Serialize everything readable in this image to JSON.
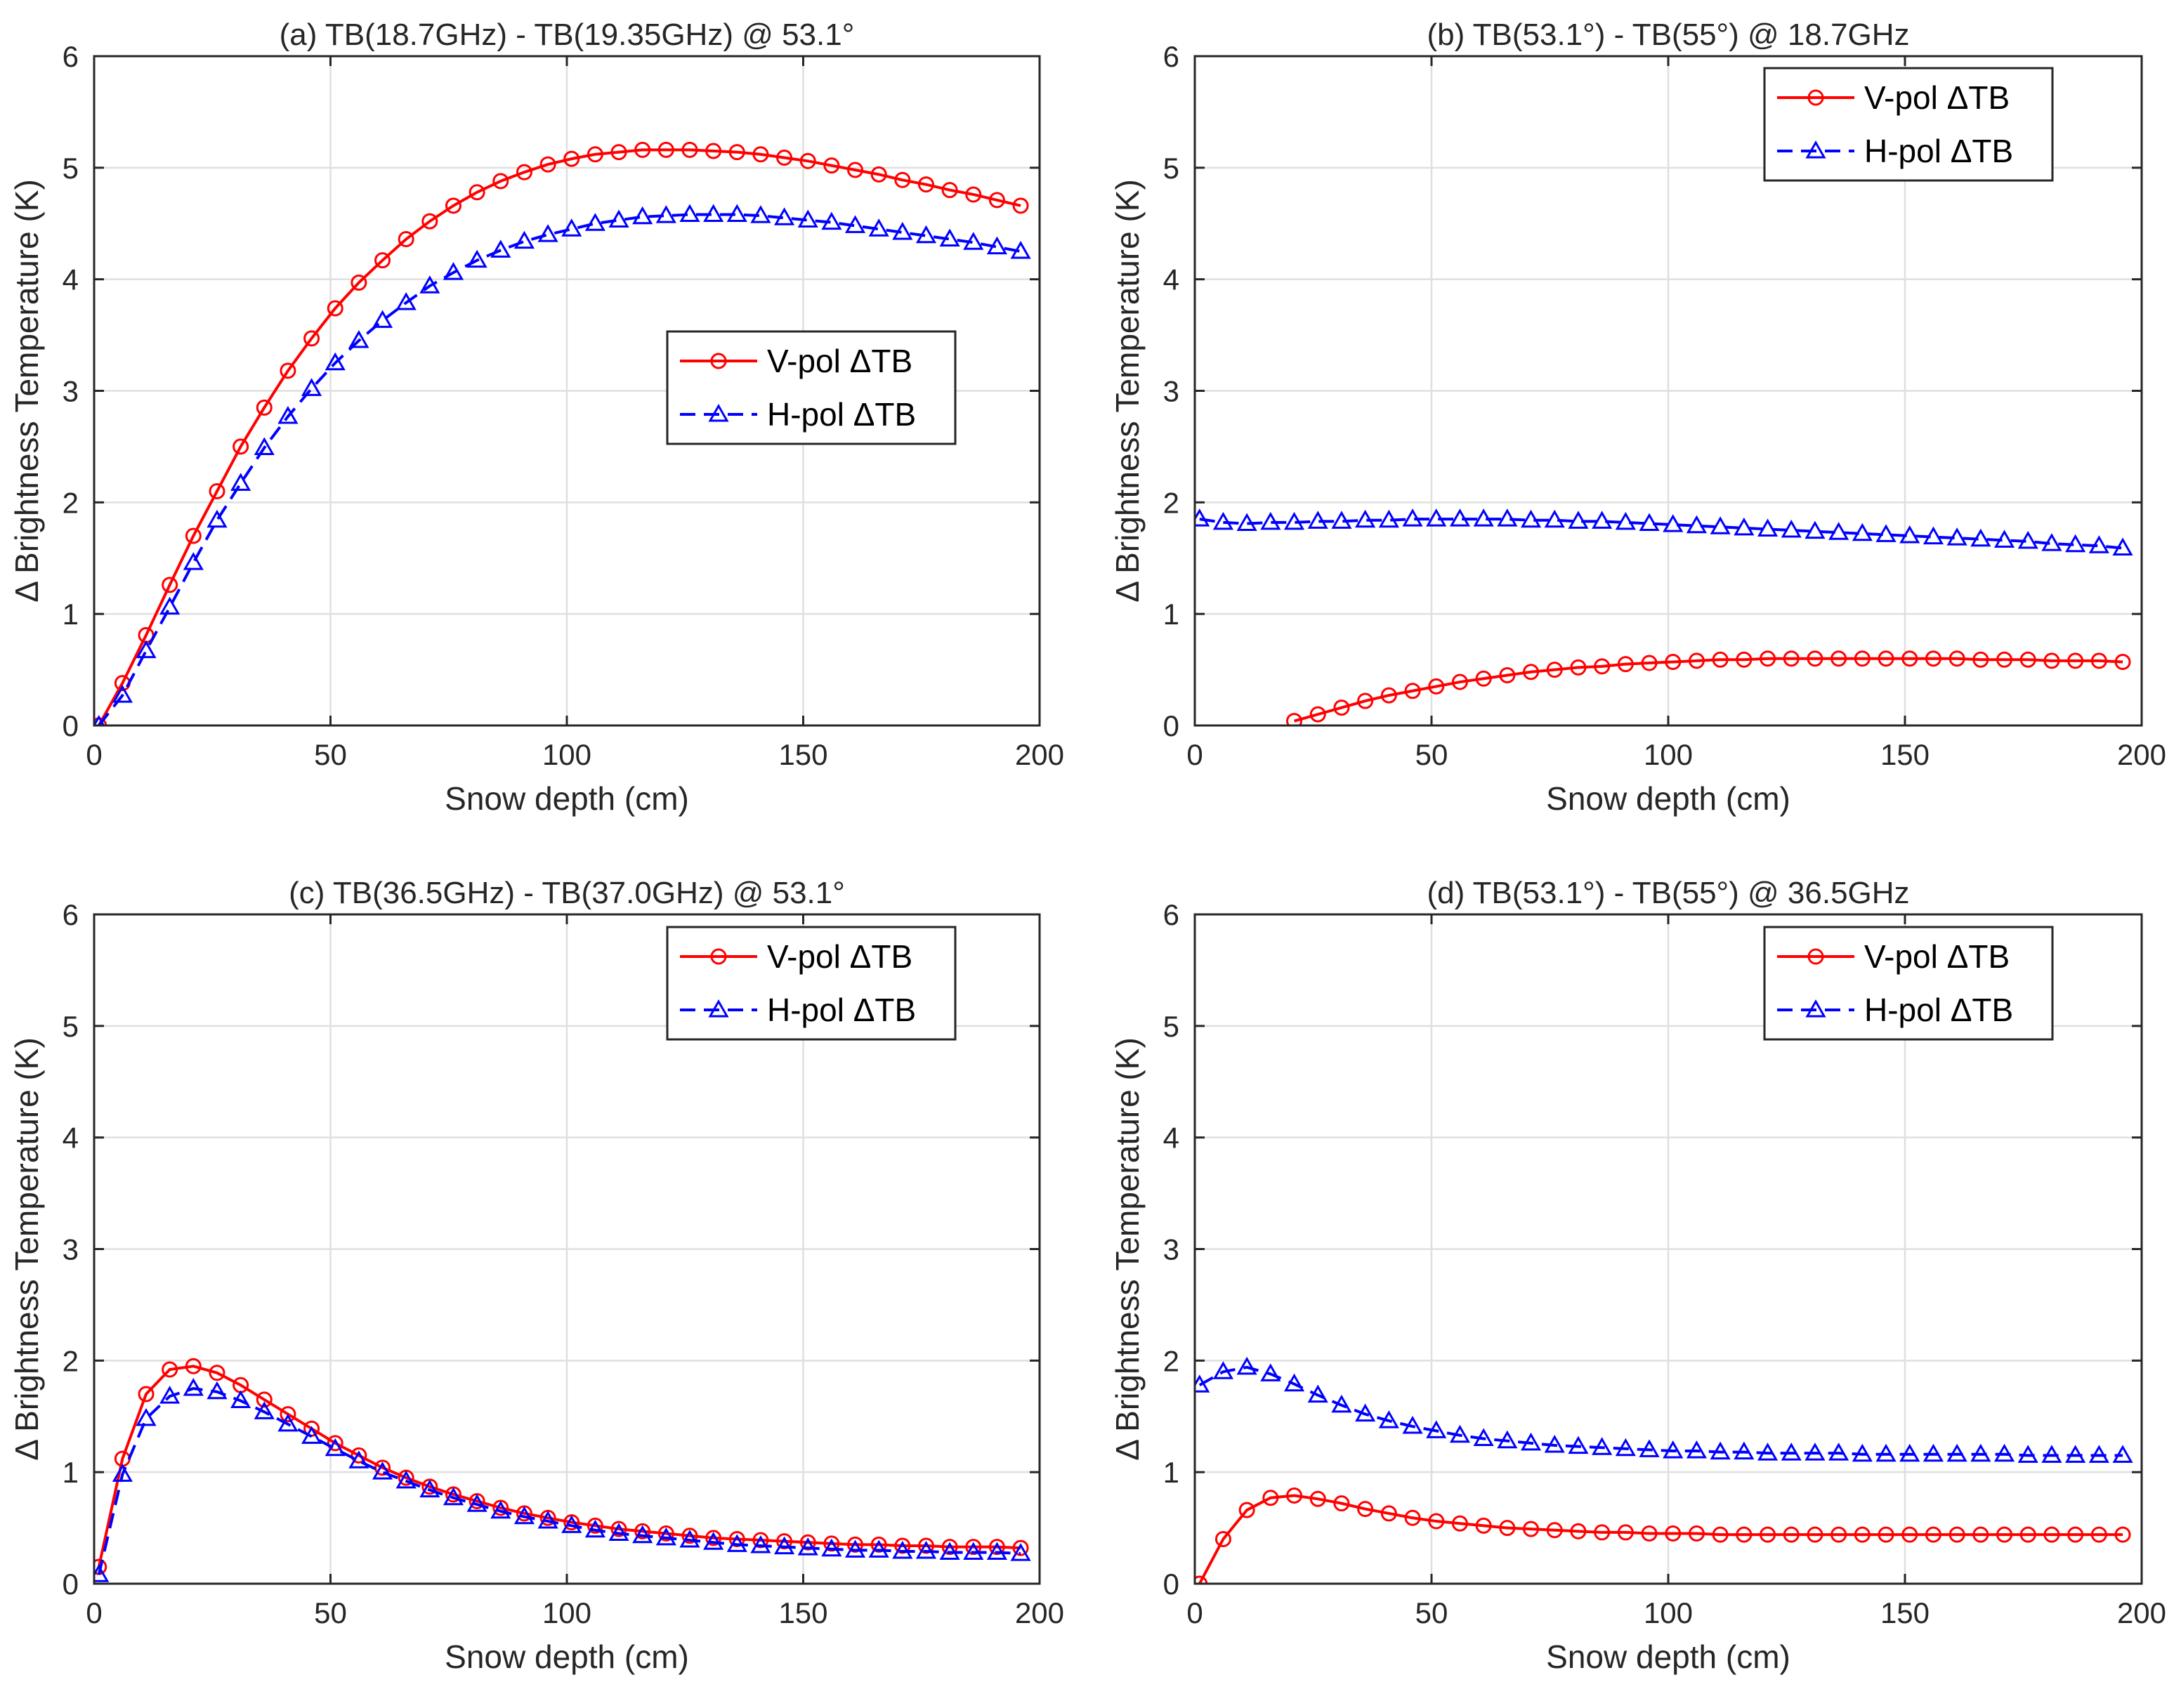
{
  "figure": {
    "chart_data": [
      {
        "type": "line",
        "panel": "a",
        "title": "(a) TB(18.7GHz) - TB(19.35GHz) @ 53.1°",
        "xlabel": "Snow depth (cm)",
        "ylabel": "Δ Brightness Temperature (K)",
        "xlim": [
          0,
          200
        ],
        "ylim": [
          0,
          6
        ],
        "xticks": [
          "0",
          "50",
          "100",
          "150",
          "200"
        ],
        "yticks": [
          "0",
          "1",
          "2",
          "3",
          "4",
          "5",
          "6"
        ],
        "grid": true,
        "legend_position": "center-right",
        "x": [
          1,
          6,
          11,
          16,
          21,
          26,
          31,
          36,
          41,
          46,
          51,
          56,
          61,
          66,
          71,
          76,
          81,
          86,
          91,
          96,
          101,
          106,
          111,
          116,
          121,
          126,
          131,
          136,
          141,
          146,
          151,
          156,
          161,
          166,
          171,
          176,
          181,
          186,
          191,
          196
        ],
        "series": [
          {
            "name": "V-pol ΔTB",
            "color": "#ff0000",
            "marker": "circle",
            "line": "solid",
            "values": [
              0,
              0.38,
              0.81,
              1.26,
              1.7,
              2.1,
              2.5,
              2.85,
              3.18,
              3.47,
              3.74,
              3.97,
              4.17,
              4.36,
              4.52,
              4.66,
              4.78,
              4.88,
              4.96,
              5.03,
              5.08,
              5.12,
              5.14,
              5.16,
              5.16,
              5.16,
              5.15,
              5.14,
              5.12,
              5.09,
              5.06,
              5.02,
              4.98,
              4.94,
              4.89,
              4.85,
              4.8,
              4.76,
              4.71,
              4.66
            ]
          },
          {
            "name": "H-pol ΔTB",
            "color": "#0000ff",
            "marker": "triangle",
            "line": "dashed",
            "values": [
              0,
              0.27,
              0.67,
              1.06,
              1.46,
              1.84,
              2.17,
              2.49,
              2.77,
              3.02,
              3.25,
              3.45,
              3.63,
              3.79,
              3.94,
              4.06,
              4.17,
              4.26,
              4.34,
              4.4,
              4.45,
              4.5,
              4.53,
              4.56,
              4.57,
              4.58,
              4.58,
              4.58,
              4.57,
              4.55,
              4.53,
              4.51,
              4.48,
              4.45,
              4.42,
              4.39,
              4.36,
              4.33,
              4.29,
              4.25
            ]
          }
        ]
      },
      {
        "type": "line",
        "panel": "b",
        "title": "(b) TB(53.1°) - TB(55°) @ 18.7GHz",
        "xlabel": "Snow depth (cm)",
        "ylabel": "Δ Brightness Temperature (K)",
        "xlim": [
          0,
          200
        ],
        "ylim": [
          0,
          6
        ],
        "xticks": [
          "0",
          "50",
          "100",
          "150",
          "200"
        ],
        "yticks": [
          "0",
          "1",
          "2",
          "3",
          "4",
          "5",
          "6"
        ],
        "grid": true,
        "legend_position": "top-right",
        "x": [
          1,
          6,
          11,
          16,
          21,
          26,
          31,
          36,
          41,
          46,
          51,
          56,
          61,
          66,
          71,
          76,
          81,
          86,
          91,
          96,
          101,
          106,
          111,
          116,
          121,
          126,
          131,
          136,
          141,
          146,
          151,
          156,
          161,
          166,
          171,
          176,
          181,
          186,
          191,
          196
        ],
        "series": [
          {
            "name": "V-pol ΔTB",
            "color": "#ff0000",
            "marker": "circle",
            "line": "solid",
            "x_start": 21,
            "values": [
              null,
              null,
              null,
              null,
              0.04,
              0.1,
              0.16,
              0.22,
              0.27,
              0.31,
              0.35,
              0.39,
              0.42,
              0.45,
              0.48,
              0.5,
              0.52,
              0.53,
              0.55,
              0.56,
              0.57,
              0.58,
              0.59,
              0.59,
              0.6,
              0.6,
              0.6,
              0.6,
              0.6,
              0.6,
              0.6,
              0.6,
              0.6,
              0.59,
              0.59,
              0.59,
              0.58,
              0.58,
              0.58,
              0.57
            ]
          },
          {
            "name": "H-pol ΔTB",
            "color": "#0000ff",
            "marker": "triangle",
            "line": "dashed",
            "values": [
              1.85,
              1.82,
              1.81,
              1.82,
              1.82,
              1.83,
              1.83,
              1.84,
              1.84,
              1.85,
              1.85,
              1.85,
              1.85,
              1.85,
              1.84,
              1.84,
              1.83,
              1.83,
              1.82,
              1.81,
              1.8,
              1.79,
              1.78,
              1.77,
              1.76,
              1.75,
              1.74,
              1.73,
              1.72,
              1.71,
              1.7,
              1.69,
              1.68,
              1.67,
              1.66,
              1.65,
              1.63,
              1.62,
              1.61,
              1.59
            ]
          }
        ]
      },
      {
        "type": "line",
        "panel": "c",
        "title": "(c) TB(36.5GHz) - TB(37.0GHz) @ 53.1°",
        "xlabel": "Snow depth (cm)",
        "ylabel": "Δ Brightness Temperature (K)",
        "xlim": [
          0,
          200
        ],
        "ylim": [
          0,
          6
        ],
        "xticks": [
          "0",
          "50",
          "100",
          "150",
          "200"
        ],
        "yticks": [
          "0",
          "1",
          "2",
          "3",
          "4",
          "5",
          "6"
        ],
        "grid": true,
        "legend_position": "top-right",
        "x": [
          1,
          6,
          11,
          16,
          21,
          26,
          31,
          36,
          41,
          46,
          51,
          56,
          61,
          66,
          71,
          76,
          81,
          86,
          91,
          96,
          101,
          106,
          111,
          116,
          121,
          126,
          131,
          136,
          141,
          146,
          151,
          156,
          161,
          166,
          171,
          176,
          181,
          186,
          191,
          196
        ],
        "series": [
          {
            "name": "V-pol ΔTB",
            "color": "#ff0000",
            "marker": "circle",
            "line": "solid",
            "values": [
              0.15,
              1.12,
              1.7,
              1.92,
              1.95,
              1.89,
              1.78,
              1.65,
              1.52,
              1.39,
              1.26,
              1.15,
              1.04,
              0.95,
              0.87,
              0.8,
              0.74,
              0.68,
              0.63,
              0.59,
              0.55,
              0.52,
              0.49,
              0.47,
              0.45,
              0.43,
              0.41,
              0.4,
              0.39,
              0.38,
              0.37,
              0.36,
              0.35,
              0.35,
              0.34,
              0.34,
              0.33,
              0.33,
              0.33,
              0.32
            ]
          },
          {
            "name": "H-pol ΔTB",
            "color": "#0000ff",
            "marker": "triangle",
            "line": "dashed",
            "values": [
              0.08,
              0.98,
              1.48,
              1.68,
              1.75,
              1.72,
              1.64,
              1.54,
              1.43,
              1.32,
              1.21,
              1.1,
              1.0,
              0.92,
              0.84,
              0.77,
              0.71,
              0.65,
              0.6,
              0.56,
              0.52,
              0.48,
              0.45,
              0.43,
              0.41,
              0.39,
              0.37,
              0.35,
              0.34,
              0.33,
              0.32,
              0.31,
              0.3,
              0.3,
              0.29,
              0.29,
              0.28,
              0.28,
              0.28,
              0.27
            ]
          }
        ]
      },
      {
        "type": "line",
        "panel": "d",
        "title": "(d) TB(53.1°) - TB(55°) @ 36.5GHz",
        "xlabel": "Snow depth (cm)",
        "ylabel": "Δ Brightness Temperature (K)",
        "xlim": [
          0,
          200
        ],
        "ylim": [
          0,
          6
        ],
        "xticks": [
          "0",
          "50",
          "100",
          "150",
          "200"
        ],
        "yticks": [
          "0",
          "1",
          "2",
          "3",
          "4",
          "5",
          "6"
        ],
        "grid": true,
        "legend_position": "top-right",
        "x": [
          1,
          6,
          11,
          16,
          21,
          26,
          31,
          36,
          41,
          46,
          51,
          56,
          61,
          66,
          71,
          76,
          81,
          86,
          91,
          96,
          101,
          106,
          111,
          116,
          121,
          126,
          131,
          136,
          141,
          146,
          151,
          156,
          161,
          166,
          171,
          176,
          181,
          186,
          191,
          196
        ],
        "series": [
          {
            "name": "V-pol ΔTB",
            "color": "#ff0000",
            "marker": "circle",
            "line": "solid",
            "values": [
              0,
              0.4,
              0.66,
              0.77,
              0.79,
              0.76,
              0.72,
              0.67,
              0.63,
              0.59,
              0.56,
              0.54,
              0.52,
              0.5,
              0.49,
              0.48,
              0.47,
              0.46,
              0.46,
              0.45,
              0.45,
              0.45,
              0.44,
              0.44,
              0.44,
              0.44,
              0.44,
              0.44,
              0.44,
              0.44,
              0.44,
              0.44,
              0.44,
              0.44,
              0.44,
              0.44,
              0.44,
              0.44,
              0.44,
              0.44
            ]
          },
          {
            "name": "H-pol ΔTB",
            "color": "#0000ff",
            "marker": "triangle",
            "line": "dashed",
            "values": [
              1.78,
              1.9,
              1.94,
              1.88,
              1.79,
              1.69,
              1.6,
              1.52,
              1.46,
              1.41,
              1.37,
              1.33,
              1.3,
              1.28,
              1.26,
              1.24,
              1.23,
              1.22,
              1.21,
              1.2,
              1.19,
              1.19,
              1.18,
              1.18,
              1.17,
              1.17,
              1.17,
              1.17,
              1.16,
              1.16,
              1.16,
              1.16,
              1.16,
              1.16,
              1.16,
              1.15,
              1.15,
              1.15,
              1.15,
              1.15
            ]
          }
        ]
      }
    ]
  }
}
